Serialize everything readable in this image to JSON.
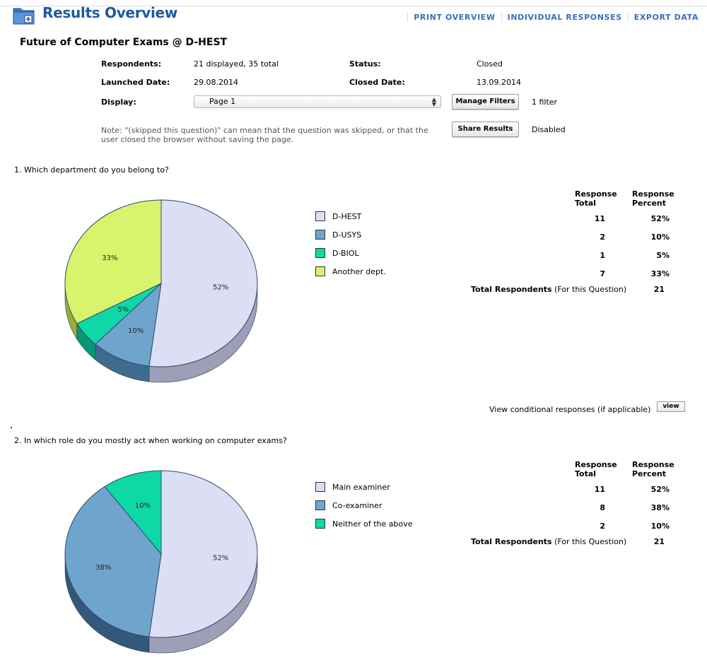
{
  "header": {
    "title": "Results Overview",
    "nav": [
      "PRINT OVERVIEW",
      "INDIVIDUAL RESPONSES",
      "EXPORT DATA"
    ]
  },
  "survey": {
    "title": "Future of Computer Exams @ D-HEST",
    "respondents_label": "Respondents:",
    "respondents_value": "21 displayed, 35 total",
    "status_label": "Status:",
    "status_value": "Closed",
    "launched_label": "Launched Date:",
    "launched_value": "29.08.2014",
    "closed_label": "Closed Date:",
    "closed_value": "13.09.2014",
    "display_label": "Display:",
    "display_value": "Page 1",
    "manage_filters": "Manage Filters",
    "filter_count": "1 filter",
    "share_results": "Share Results",
    "share_status": "Disabled",
    "note": "Note: \"(skipped this question)\" can mean that the question was skipped, or that the user closed the browser without saving the page."
  },
  "table_headers": {
    "total": "Response Total",
    "percent": "Response Percent",
    "total_respondents": "Total Respondents",
    "for_question": "(For this Question)"
  },
  "questions": [
    {
      "number": "1.",
      "text": "Which department do you belong to?",
      "total_respondents": "21",
      "answers": [
        {
          "label": "D-HEST",
          "total": "11",
          "percent": "52%",
          "color": "#dcdff3",
          "side": "#9c9fb6"
        },
        {
          "label": "D-USYS",
          "total": "2",
          "percent": "10%",
          "color": "#6fa5cc",
          "side": "#3e6c8e"
        },
        {
          "label": "D-BIOL",
          "total": "1",
          "percent": "5%",
          "color": "#0ed8a6",
          "side": "#089775"
        },
        {
          "label": "Another dept.",
          "total": "7",
          "percent": "33%",
          "color": "#d9f36c",
          "side": "#98ad3c"
        }
      ]
    },
    {
      "number": "2.",
      "text": "In which role do you mostly act when working on computer exams?",
      "total_respondents": "21",
      "answers": [
        {
          "label": "Main examiner",
          "total": "11",
          "percent": "52%",
          "color": "#dcdff3",
          "side": "#9c9fb6"
        },
        {
          "label": "Co-examiner",
          "total": "8",
          "percent": "38%",
          "color": "#6fa5cc",
          "side": "#33587a"
        },
        {
          "label": "Neither of the above",
          "total": "2",
          "percent": "10%",
          "color": "#0ed8a6",
          "side": "#089775"
        }
      ]
    }
  ],
  "conditional": {
    "text": "View conditional responses (if applicable)",
    "button": "view"
  }
}
